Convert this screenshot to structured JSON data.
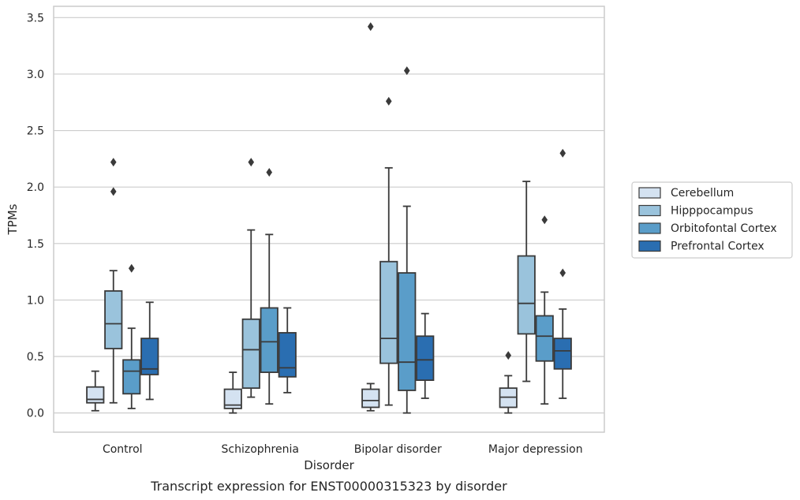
{
  "chart_data": {
    "type": "box",
    "title": "",
    "caption": "Transcript expression for ENST00000315323 by disorder",
    "xlabel": "Disorder",
    "ylabel": "TPMs",
    "ylim": [
      -0.17,
      3.6
    ],
    "yticks": [
      "0.0",
      "0.5",
      "1.0",
      "1.5",
      "2.0",
      "2.5",
      "3.0",
      "3.5"
    ],
    "ytick_values": [
      0,
      0.5,
      1.0,
      1.5,
      2.0,
      2.5,
      3.0,
      3.5
    ],
    "grid": "horizontal",
    "legend_position": "right",
    "categories": [
      "Control",
      "Schizophrenia",
      "Bipolar disorder",
      "Major depression"
    ],
    "series": [
      {
        "name": "Cerebellum",
        "color": "#d4e2f1",
        "boxes": [
          {
            "whislo": 0.02,
            "q1": 0.09,
            "med": 0.12,
            "q3": 0.23,
            "whishi": 0.37,
            "fliers": []
          },
          {
            "whislo": 0.0,
            "q1": 0.04,
            "med": 0.07,
            "q3": 0.21,
            "whishi": 0.36,
            "fliers": []
          },
          {
            "whislo": 0.02,
            "q1": 0.05,
            "med": 0.11,
            "q3": 0.21,
            "whishi": 0.26,
            "fliers": [
              3.42
            ]
          },
          {
            "whislo": 0.0,
            "q1": 0.05,
            "med": 0.14,
            "q3": 0.22,
            "whishi": 0.33,
            "fliers": [
              0.51
            ]
          }
        ]
      },
      {
        "name": "Hipppocampus",
        "color": "#9ac3dc",
        "boxes": [
          {
            "whislo": 0.09,
            "q1": 0.57,
            "med": 0.79,
            "q3": 1.08,
            "whishi": 1.26,
            "fliers": [
              1.96,
              2.22
            ]
          },
          {
            "whislo": 0.14,
            "q1": 0.22,
            "med": 0.56,
            "q3": 0.83,
            "whishi": 1.62,
            "fliers": [
              2.22
            ]
          },
          {
            "whislo": 0.07,
            "q1": 0.44,
            "med": 0.66,
            "q3": 1.34,
            "whishi": 2.17,
            "fliers": [
              2.76
            ]
          },
          {
            "whislo": 0.28,
            "q1": 0.7,
            "med": 0.97,
            "q3": 1.39,
            "whishi": 2.05,
            "fliers": []
          }
        ]
      },
      {
        "name": "Orbitofontal Cortex",
        "color": "#5a9dc9",
        "boxes": [
          {
            "whislo": 0.04,
            "q1": 0.17,
            "med": 0.37,
            "q3": 0.47,
            "whishi": 0.75,
            "fliers": [
              1.28
            ]
          },
          {
            "whislo": 0.08,
            "q1": 0.36,
            "med": 0.63,
            "q3": 0.93,
            "whishi": 1.58,
            "fliers": [
              2.13
            ]
          },
          {
            "whislo": 0.0,
            "q1": 0.2,
            "med": 0.45,
            "q3": 1.24,
            "whishi": 1.83,
            "fliers": [
              3.03
            ]
          },
          {
            "whislo": 0.08,
            "q1": 0.46,
            "med": 0.68,
            "q3": 0.86,
            "whishi": 1.07,
            "fliers": [
              1.71
            ]
          }
        ]
      },
      {
        "name": "Prefrontal Cortex",
        "color": "#2a6eb1",
        "boxes": [
          {
            "whislo": 0.12,
            "q1": 0.34,
            "med": 0.39,
            "q3": 0.66,
            "whishi": 0.98,
            "fliers": []
          },
          {
            "whislo": 0.18,
            "q1": 0.32,
            "med": 0.4,
            "q3": 0.71,
            "whishi": 0.93,
            "fliers": []
          },
          {
            "whislo": 0.13,
            "q1": 0.29,
            "med": 0.47,
            "q3": 0.68,
            "whishi": 0.88,
            "fliers": []
          },
          {
            "whislo": 0.13,
            "q1": 0.39,
            "med": 0.55,
            "q3": 0.66,
            "whishi": 0.92,
            "fliers": [
              1.24,
              2.3
            ]
          }
        ]
      }
    ]
  }
}
